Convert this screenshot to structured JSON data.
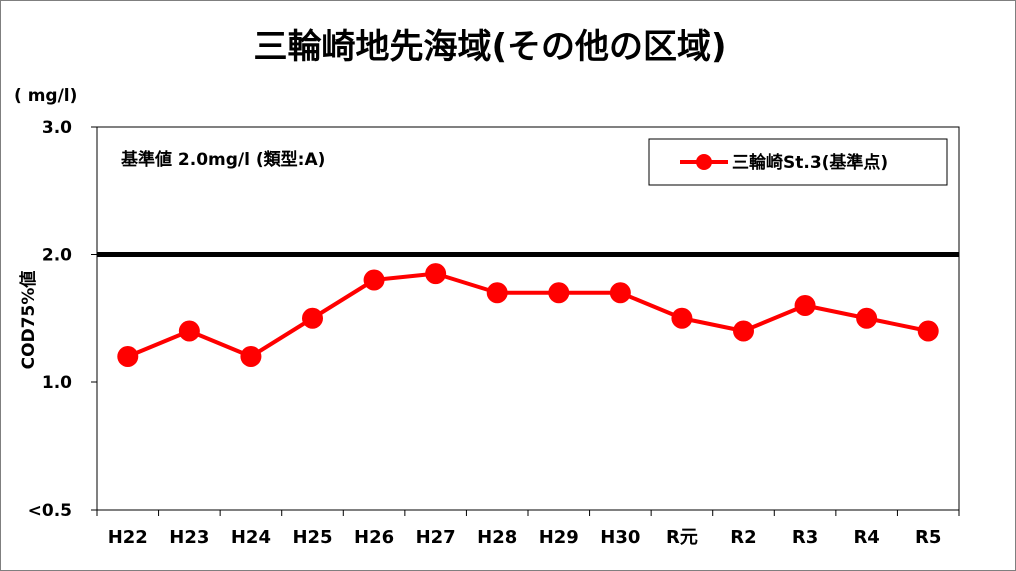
{
  "chart_data": {
    "type": "line",
    "title": "三輪崎地先海域(その他の区域)",
    "unit_label": "( mg/l)",
    "ylabel": "COD75%値",
    "categories": [
      "H22",
      "H23",
      "H24",
      "H25",
      "H26",
      "H27",
      "H28",
      "H29",
      "H30",
      "R元",
      "R2",
      "R3",
      "R4",
      "R5"
    ],
    "series": [
      {
        "name": "三輪崎St.3(基準点)",
        "color": "#ff0000",
        "values": [
          1.2,
          1.4,
          1.2,
          1.5,
          1.8,
          1.85,
          1.7,
          1.7,
          1.7,
          1.5,
          1.4,
          1.6,
          1.5,
          1.4
        ]
      }
    ],
    "yticks": [
      {
        "value": 0.5,
        "label": "<0.5"
      },
      {
        "value": 1.0,
        "label": "1.0"
      },
      {
        "value": 2.0,
        "label": "2.0"
      },
      {
        "value": 3.0,
        "label": "3.0"
      }
    ],
    "ylim": [
      0.5,
      3.0
    ],
    "ylim_mid_break": 1.0,
    "reference_line": {
      "value": 2.0,
      "color": "#000000"
    },
    "annotation": "基準値 2.0mg/l (類型:A)",
    "legend_position": "top-right",
    "grid": false
  }
}
